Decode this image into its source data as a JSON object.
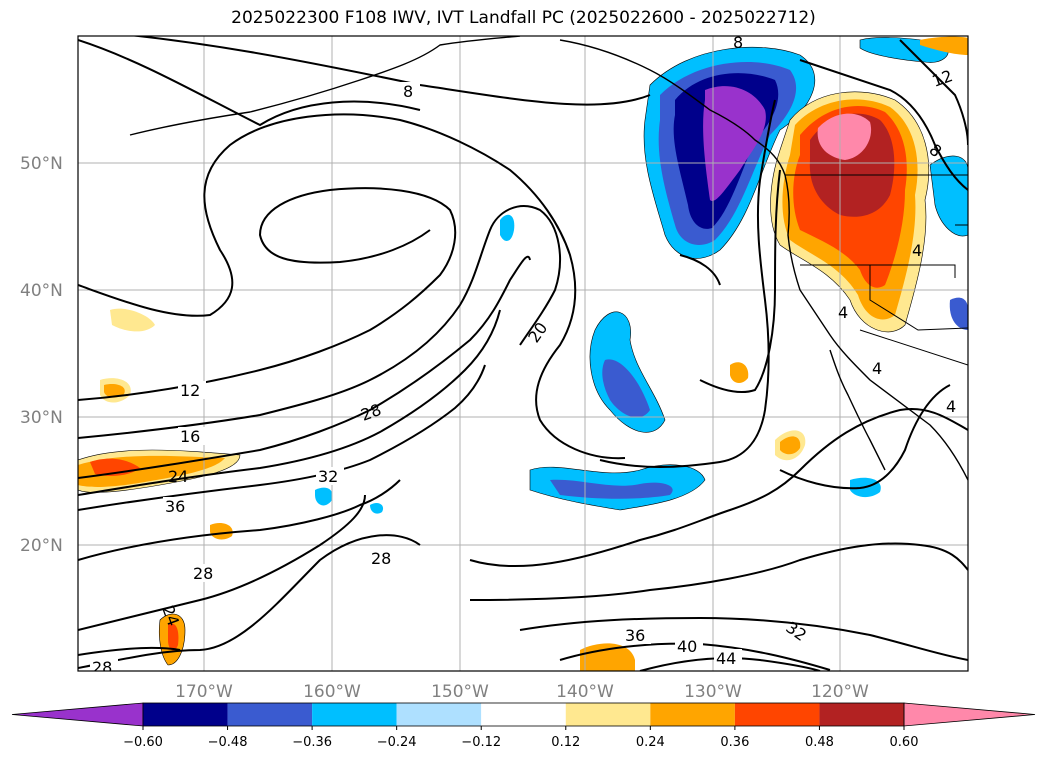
{
  "title": "2025022300 F108 IWV, IVT Landfall PC (2025022600 - 2025022712)",
  "lat_labels": [
    "50°N",
    "40°N",
    "30°N",
    "20°N"
  ],
  "lon_labels": [
    "170°W",
    "160°W",
    "150°W",
    "140°W",
    "130°W",
    "120°W"
  ],
  "contour_labels": [
    "8",
    "12",
    "16",
    "24",
    "36",
    "32",
    "28",
    "28",
    "24",
    "28",
    "20",
    "36",
    "40",
    "44",
    "32",
    "8",
    "12",
    "8",
    "4",
    "4",
    "4",
    "4",
    "28"
  ],
  "colorbar": {
    "colors": [
      "#9932cc",
      "#00008b",
      "#3a5bd0",
      "#00bfff",
      "#aee0ff",
      "#ffffff",
      "#ffe890",
      "#ffa500",
      "#ff4500",
      "#b22222",
      "#ff88aa"
    ],
    "tick_labels": [
      "−0.60",
      "−0.48",
      "−0.36",
      "−0.24",
      "−0.12",
      "0.12",
      "0.24",
      "0.36",
      "0.48",
      "0.60"
    ]
  }
}
